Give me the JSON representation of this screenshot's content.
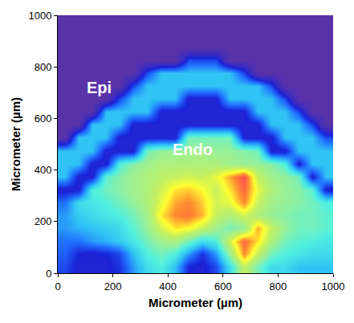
{
  "chart_data": {
    "type": "heatmap",
    "x": [
      25,
      75,
      125,
      175,
      225,
      275,
      325,
      375,
      425,
      475,
      525,
      575,
      625,
      675,
      725,
      775,
      825,
      875,
      925,
      975
    ],
    "y": [
      25,
      75,
      125,
      175,
      225,
      275,
      325,
      375,
      425,
      475,
      525,
      575,
      625,
      675,
      725,
      775,
      825,
      875,
      925,
      975
    ],
    "cells": [
      [
        25,
        18,
        18,
        18,
        22,
        35,
        45,
        50,
        40,
        20,
        18,
        25,
        45,
        70,
        55,
        45,
        45,
        40,
        40,
        40
      ],
      [
        28,
        20,
        18,
        20,
        25,
        40,
        50,
        55,
        50,
        35,
        22,
        35,
        60,
        88,
        70,
        55,
        50,
        48,
        45,
        45
      ],
      [
        30,
        30,
        35,
        38,
        42,
        48,
        55,
        62,
        65,
        55,
        45,
        50,
        72,
        92,
        80,
        65,
        55,
        52,
        50,
        48
      ],
      [
        35,
        38,
        40,
        42,
        45,
        52,
        60,
        72,
        80,
        78,
        70,
        62,
        55,
        60,
        85,
        70,
        60,
        55,
        55,
        52
      ],
      [
        35,
        42,
        45,
        48,
        50,
        55,
        62,
        80,
        88,
        90,
        84,
        70,
        65,
        72,
        65,
        60,
        58,
        55,
        55,
        52
      ],
      [
        30,
        45,
        48,
        50,
        55,
        60,
        65,
        75,
        85,
        88,
        82,
        72,
        75,
        88,
        70,
        62,
        60,
        58,
        55,
        50
      ],
      [
        18,
        18,
        50,
        55,
        58,
        62,
        65,
        72,
        80,
        82,
        78,
        70,
        80,
        92,
        75,
        65,
        60,
        58,
        52,
        18
      ],
      [
        40,
        18,
        18,
        52,
        58,
        62,
        65,
        68,
        70,
        72,
        70,
        75,
        85,
        95,
        70,
        62,
        60,
        55,
        18,
        40
      ],
      [
        40,
        40,
        18,
        18,
        50,
        58,
        62,
        65,
        65,
        65,
        65,
        65,
        62,
        60,
        60,
        58,
        50,
        18,
        40,
        40
      ],
      [
        40,
        40,
        40,
        18,
        18,
        18,
        55,
        60,
        60,
        62,
        62,
        60,
        60,
        58,
        55,
        18,
        18,
        40,
        40,
        40
      ],
      [
        0,
        40,
        40,
        40,
        18,
        18,
        18,
        18,
        18,
        55,
        55,
        55,
        55,
        18,
        18,
        18,
        40,
        40,
        40,
        25
      ],
      [
        0,
        0,
        40,
        40,
        40,
        18,
        18,
        18,
        18,
        18,
        18,
        18,
        18,
        18,
        18,
        40,
        40,
        40,
        25,
        0
      ],
      [
        0,
        0,
        0,
        40,
        40,
        40,
        40,
        18,
        18,
        18,
        18,
        18,
        18,
        18,
        40,
        40,
        40,
        25,
        0,
        0
      ],
      [
        0,
        0,
        0,
        0,
        25,
        40,
        40,
        40,
        40,
        18,
        18,
        18,
        40,
        40,
        40,
        40,
        25,
        0,
        0,
        0
      ],
      [
        0,
        0,
        0,
        0,
        0,
        25,
        40,
        40,
        40,
        40,
        40,
        40,
        40,
        40,
        40,
        25,
        0,
        0,
        0,
        0
      ],
      [
        0,
        0,
        0,
        0,
        0,
        0,
        25,
        40,
        40,
        40,
        40,
        40,
        40,
        25,
        0,
        0,
        0,
        0,
        0,
        0
      ],
      [
        0,
        0,
        0,
        0,
        0,
        0,
        0,
        0,
        0,
        25,
        25,
        25,
        0,
        0,
        0,
        0,
        0,
        0,
        0,
        0
      ],
      [
        0,
        0,
        0,
        0,
        0,
        0,
        0,
        0,
        0,
        0,
        0,
        0,
        0,
        0,
        0,
        0,
        0,
        0,
        0,
        0
      ],
      [
        0,
        0,
        0,
        0,
        0,
        0,
        0,
        0,
        0,
        0,
        0,
        0,
        0,
        0,
        0,
        0,
        0,
        0,
        0,
        0
      ],
      [
        0,
        0,
        0,
        0,
        0,
        0,
        0,
        0,
        0,
        0,
        0,
        0,
        0,
        0,
        0,
        0,
        0,
        0,
        0,
        0
      ]
    ],
    "zlim": [
      0,
      100
    ],
    "xlim": [
      0,
      1000
    ],
    "ylim": [
      0,
      1000
    ],
    "xticks": [
      0,
      200,
      400,
      600,
      800,
      1000
    ],
    "yticks": [
      0,
      200,
      400,
      600,
      800,
      1000
    ],
    "x_label": "Micrometer (µm)",
    "y_label": "Micrometer (µm)",
    "annotations": [
      {
        "text": "Epi",
        "x": 150,
        "y": 720
      },
      {
        "text": "Endo",
        "x": 490,
        "y": 480
      }
    ],
    "grid": false
  }
}
